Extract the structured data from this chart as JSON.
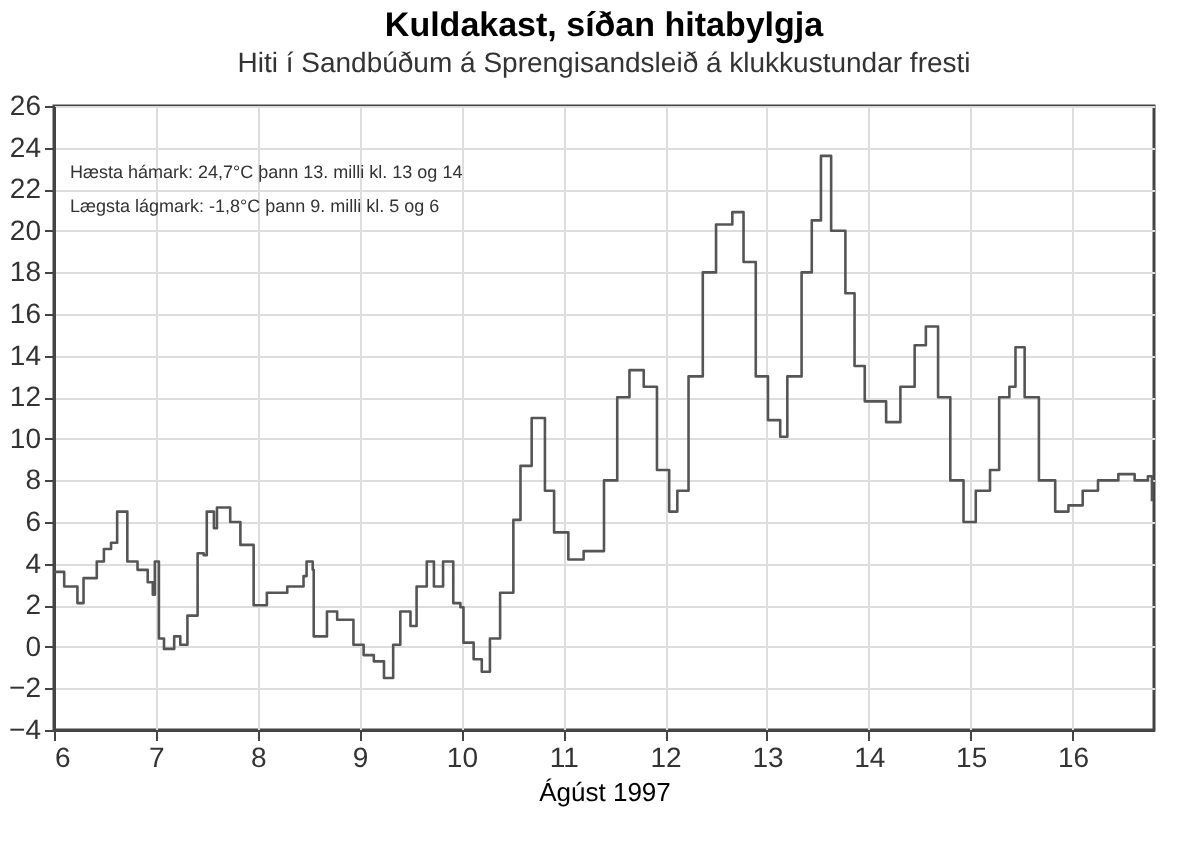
{
  "chart_data": {
    "type": "step",
    "title": "Kuldakast, síðan hitabylgja",
    "subtitle": "Hiti í Sandbúðum á Sprengisandsleið á klukkustundar fresti",
    "xlabel": "Ágúst 1997",
    "annotations": [
      "Hæsta hámark: 24,7°C þann 13. milli kl. 13 og 14",
      "Lægsta lágmark: -1,8°C þann 9. milli kl. 5 og 6"
    ],
    "x": [
      6.0,
      6.1,
      6.23,
      6.29,
      6.42,
      6.49,
      6.56,
      6.62,
      6.69,
      6.72,
      6.82,
      6.92,
      6.97,
      6.99,
      7.03,
      7.08,
      7.18,
      7.24,
      7.31,
      7.41,
      7.47,
      7.5,
      7.57,
      7.6,
      7.73,
      7.83,
      7.96,
      8.09,
      8.29,
      8.45,
      8.48,
      8.54,
      8.55,
      8.68,
      8.78,
      8.94,
      9.04,
      9.14,
      9.24,
      9.33,
      9.4,
      9.46,
      9.5,
      9.56,
      9.66,
      9.73,
      9.82,
      9.92,
      9.99,
      10.02,
      10.12,
      10.2,
      10.28,
      10.38,
      10.51,
      10.58,
      10.69,
      10.82,
      10.91,
      11.05,
      11.2,
      11.4,
      11.53,
      11.65,
      11.79,
      11.92,
      12.04,
      12.12,
      12.23,
      12.37,
      12.5,
      12.66,
      12.77,
      12.89,
      13.01,
      13.13,
      13.2,
      13.34,
      13.44,
      13.53,
      13.63,
      13.77,
      13.86,
      13.96,
      14.17,
      14.31,
      14.45,
      14.56,
      14.68,
      14.8,
      14.93,
      15.05,
      15.19,
      15.28,
      15.38,
      15.44,
      15.53,
      15.67,
      15.83,
      15.96,
      16.1,
      16.25,
      16.45,
      16.61,
      16.74,
      16.78
    ],
    "series": [
      {
        "color": "#555555",
        "values": [
          3.6,
          2.9,
          2.1,
          3.3,
          4.1,
          4.7,
          5.0,
          6.5,
          6.5,
          4.1,
          3.7,
          3.1,
          2.5,
          4.1,
          0.4,
          -0.1,
          0.5,
          0.1,
          1.5,
          4.5,
          4.4,
          6.5,
          5.7,
          6.7,
          6.0,
          4.9,
          2.0,
          2.6,
          2.9,
          3.4,
          4.1,
          3.7,
          0.5,
          1.7,
          1.3,
          0.1,
          -0.4,
          -0.7,
          -1.5,
          0.1,
          1.7,
          1.7,
          1.0,
          2.9,
          4.1,
          2.9,
          4.1,
          2.1,
          1.9,
          0.2,
          -0.6,
          -1.2,
          0.4,
          2.6,
          6.1,
          8.7,
          11.0,
          7.5,
          5.5,
          4.2,
          4.6,
          8.0,
          12.0,
          13.3,
          12.5,
          8.5,
          6.5,
          7.5,
          13.0,
          18.0,
          20.3,
          20.9,
          18.5,
          13.0,
          10.9,
          10.1,
          13.0,
          18.0,
          20.5,
          23.6,
          20.0,
          17.0,
          13.5,
          11.8,
          10.8,
          12.5,
          14.5,
          15.4,
          12.0,
          8.0,
          6.0,
          7.5,
          8.5,
          12.0,
          12.5,
          14.4,
          12.0,
          8.0,
          6.5,
          6.8,
          7.5,
          8.0,
          8.3,
          8.0,
          8.2,
          7.0
        ]
      }
    ],
    "xlim": [
      6,
      16.8
    ],
    "xticks": [
      6,
      7,
      8,
      9,
      10,
      11,
      12,
      13,
      14,
      15,
      16
    ],
    "ylim": [
      -4,
      26
    ],
    "yticks": [
      -4,
      -2,
      0,
      2,
      4,
      6,
      8,
      10,
      12,
      14,
      16,
      18,
      20,
      22,
      24,
      26
    ],
    "grid": true
  }
}
